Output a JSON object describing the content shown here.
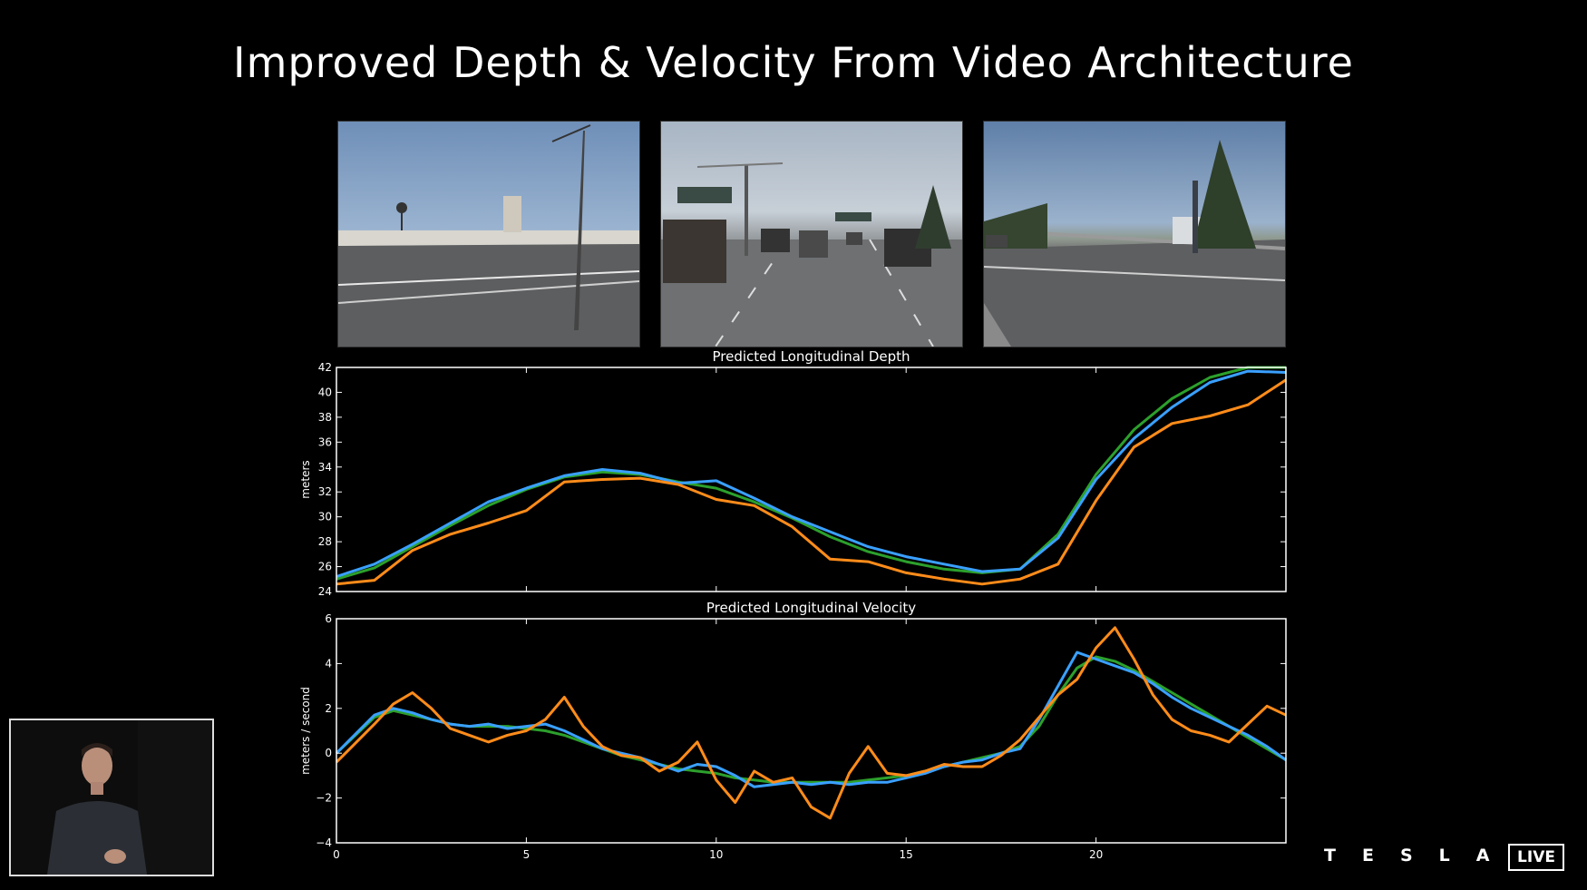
{
  "slide": {
    "title": "Improved Depth & Velocity From Video Architecture"
  },
  "camera_views": [
    {
      "name": "left-pillar-camera"
    },
    {
      "name": "front-camera"
    },
    {
      "name": "right-pillar-camera"
    }
  ],
  "brand": {
    "logo_text": "TESLA",
    "live_badge": "LIVE"
  },
  "colors": {
    "background": "#000000",
    "series_orange": "#ff8c1a",
    "series_blue": "#3aa0ff",
    "series_green": "#2ca02c",
    "axes": "#ffffff"
  },
  "chart_data": [
    {
      "type": "line",
      "title": "Predicted Longitudinal Depth",
      "xlabel": "",
      "ylabel": "meters",
      "xlim": [
        0,
        25
      ],
      "ylim": [
        24,
        42
      ],
      "xticks": [
        0,
        5,
        10,
        15,
        20
      ],
      "yticks": [
        24,
        26,
        28,
        30,
        32,
        34,
        36,
        38,
        40,
        42
      ],
      "show_x_ticklabels": false,
      "grid": false,
      "x": [
        0,
        1,
        2,
        3,
        4,
        5,
        6,
        7,
        8,
        9,
        10,
        11,
        12,
        13,
        14,
        15,
        16,
        17,
        18,
        19,
        20,
        21,
        22,
        23,
        24,
        25
      ],
      "series": [
        {
          "color": "#2ca02c",
          "values": [
            25.0,
            25.9,
            27.6,
            29.3,
            30.9,
            32.2,
            33.2,
            33.6,
            33.4,
            32.8,
            32.3,
            31.2,
            29.9,
            28.4,
            27.2,
            26.4,
            25.8,
            25.5,
            25.8,
            28.6,
            33.4,
            37.0,
            39.5,
            41.2,
            42.0,
            42.0
          ]
        },
        {
          "color": "#3aa0ff",
          "values": [
            25.2,
            26.2,
            27.8,
            29.5,
            31.2,
            32.3,
            33.3,
            33.8,
            33.5,
            32.7,
            32.9,
            31.5,
            30.0,
            28.8,
            27.6,
            26.8,
            26.2,
            25.6,
            25.8,
            28.3,
            33.0,
            36.3,
            38.8,
            40.8,
            41.7,
            41.6
          ]
        },
        {
          "color": "#ff8c1a",
          "values": [
            24.6,
            24.9,
            27.3,
            28.6,
            29.5,
            30.5,
            32.8,
            33.0,
            33.1,
            32.6,
            31.4,
            30.9,
            29.2,
            26.6,
            26.4,
            25.5,
            25.0,
            24.6,
            25.0,
            26.2,
            31.3,
            35.6,
            37.5,
            38.1,
            39.0,
            41.0
          ]
        }
      ]
    },
    {
      "type": "line",
      "title": "Predicted Longitudinal Velocity",
      "xlabel": "",
      "ylabel": "meters / second",
      "xlim": [
        0,
        25
      ],
      "ylim": [
        -4,
        6
      ],
      "xticks": [
        0,
        5,
        10,
        15,
        20
      ],
      "yticks": [
        -4,
        -2,
        0,
        2,
        4,
        6
      ],
      "ytick_labels": [
        "−4",
        "−2",
        "0",
        "2",
        "4",
        "6"
      ],
      "xtick_labels": [
        "0",
        "5",
        "10",
        "15",
        "20"
      ],
      "grid": false,
      "x": [
        0,
        1,
        1.5,
        2,
        2.5,
        3,
        3.5,
        4,
        4.5,
        5,
        5.5,
        6,
        6.5,
        7,
        7.5,
        8,
        8.5,
        9,
        9.5,
        10,
        10.5,
        11,
        11.5,
        12,
        12.5,
        13,
        13.5,
        14,
        14.5,
        15,
        15.5,
        16,
        16.5,
        17,
        17.5,
        18,
        18.5,
        19,
        19.5,
        20,
        20.5,
        21,
        21.5,
        22,
        22.5,
        23,
        23.5,
        24,
        24.5,
        25
      ],
      "series": [
        {
          "color": "#2ca02c",
          "values": [
            0.0,
            1.6,
            1.9,
            1.7,
            1.5,
            1.3,
            1.2,
            1.2,
            1.2,
            1.1,
            1.0,
            0.8,
            0.5,
            0.2,
            -0.1,
            -0.3,
            -0.5,
            -0.7,
            -0.8,
            -0.9,
            -1.1,
            -1.2,
            -1.3,
            -1.3,
            -1.3,
            -1.3,
            -1.3,
            -1.2,
            -1.1,
            -1.0,
            -0.8,
            -0.6,
            -0.4,
            -0.2,
            0.0,
            0.3,
            1.2,
            2.6,
            3.8,
            4.3,
            4.1,
            3.7,
            3.2,
            2.7,
            2.2,
            1.7,
            1.2,
            0.7,
            0.2,
            -0.3
          ]
        },
        {
          "color": "#3aa0ff",
          "values": [
            0.0,
            1.7,
            2.0,
            1.8,
            1.5,
            1.3,
            1.2,
            1.3,
            1.1,
            1.2,
            1.3,
            1.0,
            0.6,
            0.2,
            0.0,
            -0.2,
            -0.5,
            -0.8,
            -0.5,
            -0.6,
            -1.0,
            -1.5,
            -1.4,
            -1.3,
            -1.4,
            -1.3,
            -1.4,
            -1.3,
            -1.3,
            -1.1,
            -0.9,
            -0.6,
            -0.4,
            -0.3,
            0.0,
            0.2,
            1.5,
            3.0,
            4.5,
            4.2,
            3.9,
            3.6,
            3.1,
            2.5,
            2.0,
            1.6,
            1.2,
            0.8,
            0.3,
            -0.3
          ]
        },
        {
          "color": "#ff8c1a",
          "values": [
            -0.4,
            1.3,
            2.2,
            2.7,
            2.0,
            1.1,
            0.8,
            0.5,
            0.8,
            1.0,
            1.5,
            2.5,
            1.2,
            0.3,
            -0.1,
            -0.2,
            -0.8,
            -0.4,
            0.5,
            -1.2,
            -2.2,
            -0.8,
            -1.3,
            -1.1,
            -2.4,
            -2.9,
            -0.9,
            0.3,
            -0.9,
            -1.0,
            -0.8,
            -0.5,
            -0.6,
            -0.6,
            -0.1,
            0.6,
            1.6,
            2.6,
            3.3,
            4.7,
            5.6,
            4.2,
            2.6,
            1.5,
            1.0,
            0.8,
            0.5,
            1.3,
            2.1,
            1.7
          ]
        }
      ]
    }
  ]
}
